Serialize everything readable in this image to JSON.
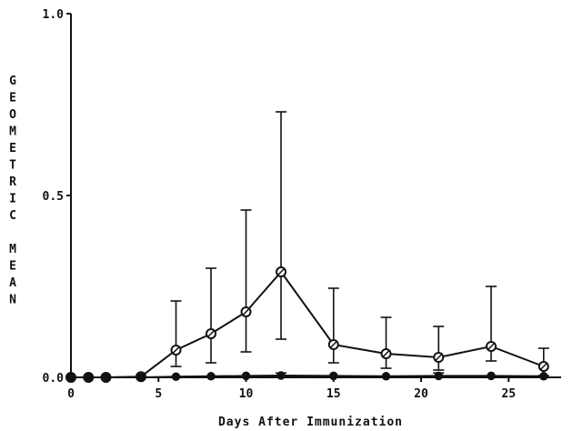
{
  "chart_data": {
    "type": "line",
    "title": "",
    "xlabel": "Days After Immunization",
    "ylabel_letters": [
      "G",
      "E",
      "O",
      "M",
      "E",
      "T",
      "R",
      "I",
      "C",
      "",
      "M",
      "E",
      "A",
      "N"
    ],
    "xlim": [
      0,
      28
    ],
    "ylim": [
      0,
      1.0
    ],
    "x_ticks": [
      0,
      5,
      10,
      15,
      20,
      25
    ],
    "x_tick_labels": [
      "0",
      "5",
      "10",
      "15",
      "20",
      "25"
    ],
    "y_ticks": [
      0,
      0.5,
      1.0
    ],
    "y_tick_labels": [
      "0.0",
      "0.5",
      "1.0"
    ],
    "grid": false,
    "series": [
      {
        "marker": "open-circle",
        "points": [
          {
            "x": 0,
            "y": 0.0
          },
          {
            "x": 1,
            "y": 0.0
          },
          {
            "x": 2,
            "y": 0.0
          },
          {
            "x": 4,
            "y": 0.002
          },
          {
            "x": 6,
            "y": 0.075,
            "err": [
              0.03,
              0.21
            ]
          },
          {
            "x": 8,
            "y": 0.12,
            "err": [
              0.04,
              0.3
            ]
          },
          {
            "x": 10,
            "y": 0.18,
            "err": [
              0.07,
              0.46
            ]
          },
          {
            "x": 12,
            "y": 0.29,
            "err": [
              0.105,
              0.73
            ]
          },
          {
            "x": 15,
            "y": 0.09,
            "err": [
              0.04,
              0.245
            ]
          },
          {
            "x": 18,
            "y": 0.065,
            "err": [
              0.025,
              0.165
            ]
          },
          {
            "x": 21,
            "y": 0.055,
            "err": [
              0.02,
              0.14
            ]
          },
          {
            "x": 24,
            "y": 0.085,
            "err": [
              0.045,
              0.25
            ]
          },
          {
            "x": 27,
            "y": 0.03,
            "err": [
              0.005,
              0.08
            ]
          }
        ]
      },
      {
        "marker": "filled-circle",
        "points": [
          {
            "x": 0,
            "y": 0.0
          },
          {
            "x": 1,
            "y": 0.0
          },
          {
            "x": 2,
            "y": 0.0
          },
          {
            "x": 4,
            "y": 0.0
          },
          {
            "x": 6,
            "y": 0.002
          },
          {
            "x": 8,
            "y": 0.003
          },
          {
            "x": 10,
            "y": 0.004
          },
          {
            "x": 12,
            "y": 0.005,
            "err": [
              0.002,
              0.012
            ]
          },
          {
            "x": 15,
            "y": 0.004
          },
          {
            "x": 18,
            "y": 0.003
          },
          {
            "x": 21,
            "y": 0.004,
            "err": [
              0.001,
              0.012
            ]
          },
          {
            "x": 24,
            "y": 0.004
          },
          {
            "x": 27,
            "y": 0.003
          }
        ]
      }
    ]
  }
}
